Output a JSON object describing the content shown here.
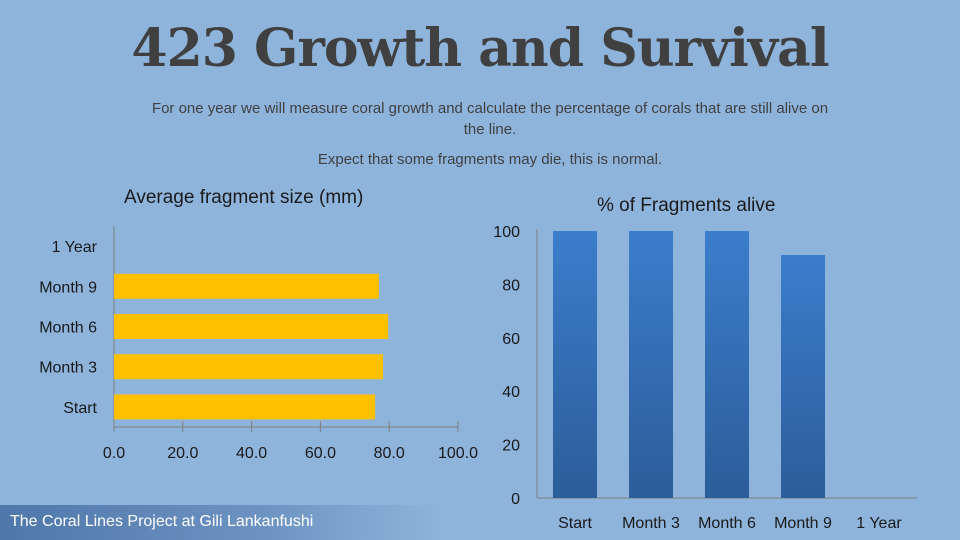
{
  "title": "423 Growth and Survival",
  "subtitle_lines": [
    "For one year we will measure coral growth and calculate the percentage of corals that are still alive on the line.",
    "Expect that some fragments may die, this is normal."
  ],
  "footer": "The Coral Lines Project at Gili Lankanfushi",
  "colors": {
    "background": "#8eb4dc",
    "size_bars": "#ffc000",
    "alive_bars_top": "#3b7dcc",
    "alive_bars_bottom": "#2c5d99"
  },
  "chart_data": [
    {
      "type": "bar",
      "orientation": "horizontal",
      "title": "Average fragment size (mm)",
      "categories": [
        "Start",
        "Month 3",
        "Month 6",
        "Month 9",
        "1 Year"
      ],
      "values": [
        75.9,
        78.2,
        79.7,
        77.0,
        null
      ],
      "xlim": [
        0,
        100
      ],
      "xticks": [
        "0.0",
        "20.0",
        "40.0",
        "60.0",
        "80.0",
        "100.0"
      ],
      "xlabel": "",
      "ylabel": ""
    },
    {
      "type": "bar",
      "orientation": "vertical",
      "title": "% of Fragments alive",
      "categories": [
        "Start",
        "Month 3",
        "Month 6",
        "Month 9",
        "1 Year"
      ],
      "values": [
        100,
        100,
        100,
        91,
        null
      ],
      "ylim": [
        0,
        100
      ],
      "yticks": [
        "0",
        "20",
        "40",
        "60",
        "80",
        "100"
      ],
      "xlabel": "",
      "ylabel": ""
    }
  ]
}
